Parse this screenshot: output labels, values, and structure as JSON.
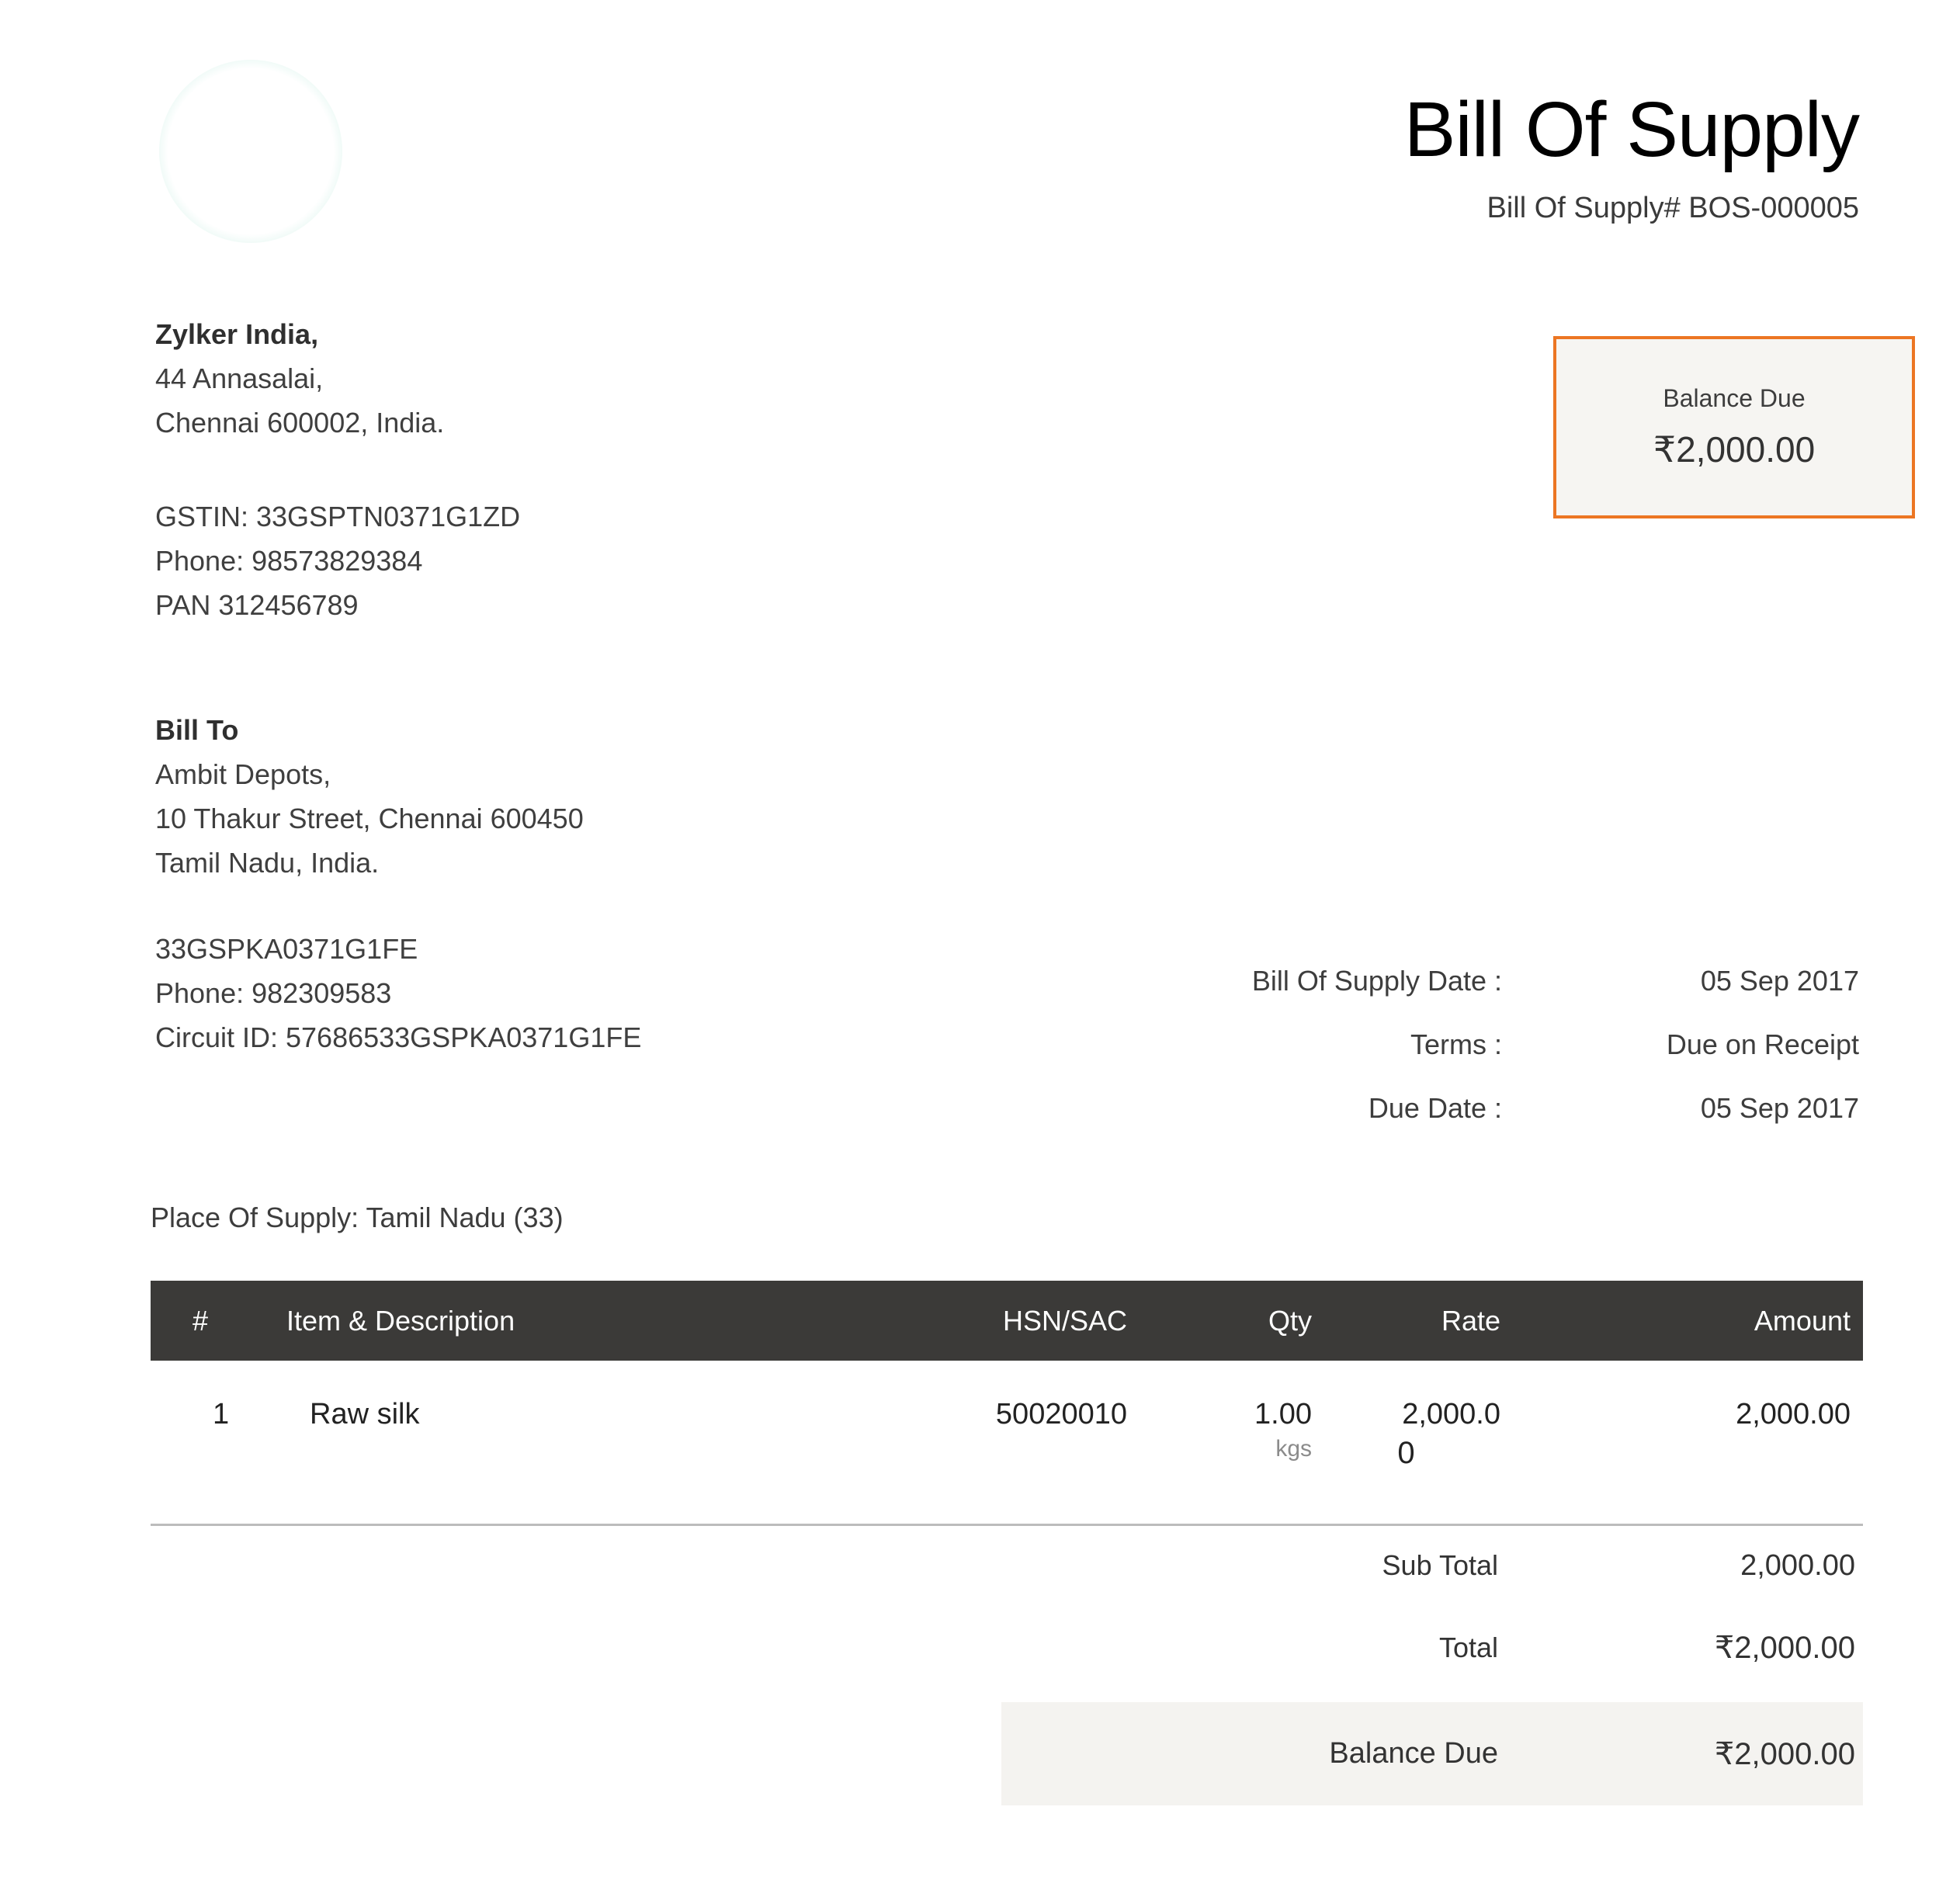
{
  "title": "Bill Of Supply",
  "doc_number_label": "Bill Of Supply# BOS-000005",
  "seller": {
    "name": "Zylker India,",
    "address_line1": "44 Annasalai,",
    "address_line2": "Chennai 600002, India.",
    "gstin": "GSTIN: 33GSPTN0371G1ZD",
    "phone": "Phone: 98573829384",
    "pan": "PAN 312456789"
  },
  "balance_box": {
    "label": "Balance Due",
    "amount": "₹2,000.00"
  },
  "bill_to": {
    "heading": "Bill To",
    "line1": "Ambit Depots,",
    "line2": "10 Thakur Street, Chennai 600450",
    "line3": "Tamil Nadu, India.",
    "gstin": "33GSPKA0371G1FE",
    "phone": "Phone: 982309583",
    "circuit_id": "Circuit ID: 57686533GSPKA0371G1FE"
  },
  "meta": {
    "rows": [
      {
        "label": "Bill Of Supply Date :",
        "value": "05 Sep 2017"
      },
      {
        "label": "Terms :",
        "value": "Due on Receipt"
      },
      {
        "label": "Due Date :",
        "value": "05 Sep 2017"
      }
    ]
  },
  "place_of_supply": "Place Of Supply: Tamil Nadu (33)",
  "table": {
    "headers": [
      "#",
      "Item & Description",
      "HSN/SAC",
      "Qty",
      "Rate",
      "Amount"
    ],
    "rows": [
      {
        "num": "1",
        "item": "Raw silk",
        "hsn": "50020010",
        "qty": "1.00",
        "qty_unit": "kgs",
        "rate_line1": "2,000.0",
        "rate_line2": "0",
        "amount": "2,000.00"
      }
    ]
  },
  "totals": {
    "rows": [
      {
        "label": "Sub Total",
        "value": "2,000.00"
      },
      {
        "label": "Total",
        "value": "₹2,000.00"
      },
      {
        "label": "Balance Due",
        "value": "₹2,000.00"
      }
    ]
  },
  "colors": {
    "accent_orange": "#ec7623",
    "table_header_bg": "#3b3a38",
    "highlight_band_bg": "#f4f3f0",
    "logo_ring": "#8ddbc5"
  }
}
